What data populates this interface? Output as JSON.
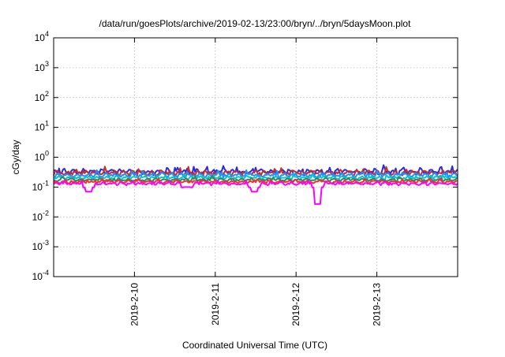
{
  "chart_data": {
    "type": "line",
    "title": "/data/run/goesPlots/archive/2019-02-13/23:00/bryn/../bryn/5daysMoon.plot",
    "xlabel": "Coordinated Universal Time (UTC)",
    "ylabel": "cGy/day",
    "yscale": "log",
    "ylim": [
      0.0001,
      10000
    ],
    "xlim": [
      "2019-02-09T00:00",
      "2019-02-14T00:00"
    ],
    "grid": true,
    "legend": "none",
    "y_ticks": [
      {
        "value": 0.0001,
        "base": "10",
        "exp": "-4"
      },
      {
        "value": 0.001,
        "base": "10",
        "exp": "-3"
      },
      {
        "value": 0.01,
        "base": "10",
        "exp": "-2"
      },
      {
        "value": 0.1,
        "base": "10",
        "exp": "-1"
      },
      {
        "value": 1,
        "base": "10",
        "exp": "0"
      },
      {
        "value": 10,
        "base": "10",
        "exp": "1"
      },
      {
        "value": 100,
        "base": "10",
        "exp": "2"
      },
      {
        "value": 1000,
        "base": "10",
        "exp": "3"
      },
      {
        "value": 10000,
        "base": "10",
        "exp": "4"
      }
    ],
    "x_ticks": [
      {
        "value": "2019-02-10T00:00",
        "label": "2019-2-10"
      },
      {
        "value": "2019-02-11T00:00",
        "label": "2019-2-11"
      },
      {
        "value": "2019-02-12T00:00",
        "label": "2019-2-12"
      },
      {
        "value": "2019-02-13T00:00",
        "label": "2019-2-13"
      }
    ],
    "series": [
      {
        "color": "#ff00ff",
        "level": 0.13,
        "jitter": 0.12,
        "phase": 0.0,
        "dips": [
          {
            "at": "2019-02-09T10:24",
            "value": 0.07
          },
          {
            "at": "2019-02-10T15:36",
            "value": 0.1
          },
          {
            "at": "2019-02-11T11:31",
            "value": 0.07
          },
          {
            "at": "2019-02-12T06:29",
            "value": 0.027
          }
        ]
      },
      {
        "color": "#ff2a2a",
        "level": 0.15,
        "jitter": 0.12,
        "phase": 1.3,
        "dips": []
      },
      {
        "color": "#2e8b57",
        "level": 0.175,
        "jitter": 0.12,
        "phase": 2.1,
        "dips": []
      },
      {
        "color": "#00c8c8",
        "level": 0.205,
        "jitter": 0.14,
        "phase": 3.7,
        "dips": []
      },
      {
        "color": "#1e90ff",
        "level": 0.25,
        "jitter": 0.18,
        "phase": 4.4,
        "dips": []
      },
      {
        "color": "#cc2a2a",
        "level": 0.3,
        "jitter": 0.22,
        "phase": 5.2,
        "dips": []
      },
      {
        "color": "#2a2ae0",
        "level": 0.33,
        "jitter": 0.24,
        "phase": 0.7,
        "dips": []
      }
    ]
  }
}
